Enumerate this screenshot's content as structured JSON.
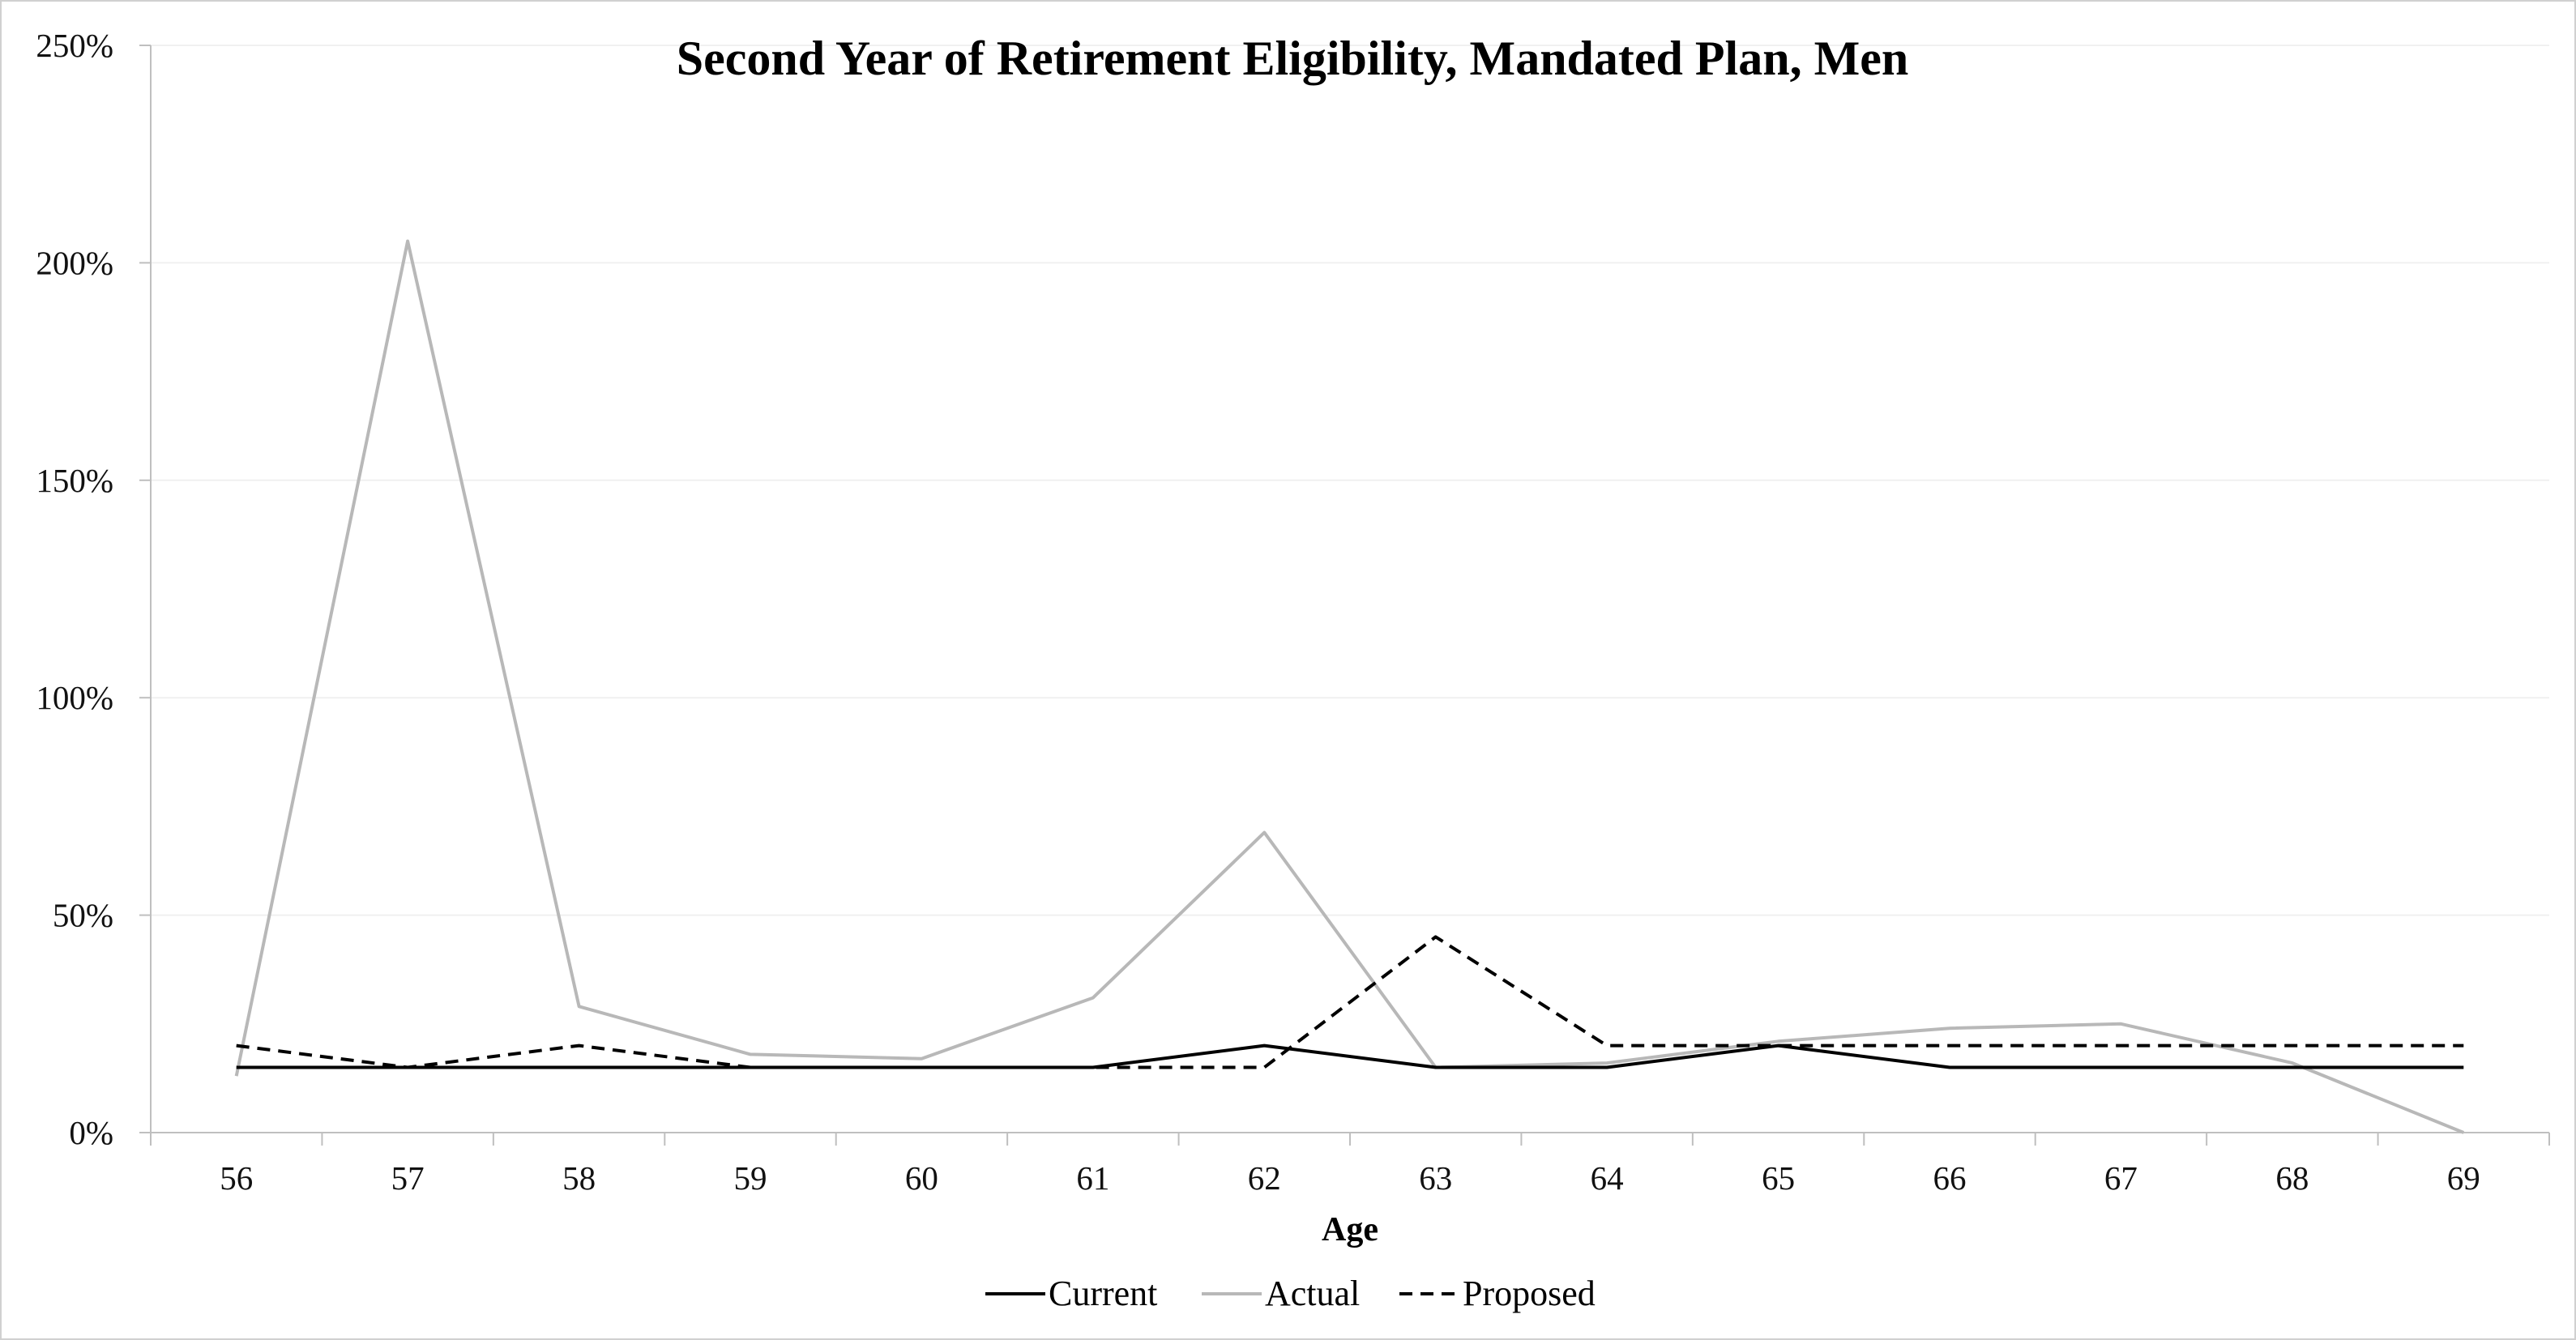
{
  "chart_data": {
    "type": "line",
    "title": "Second Year of Retirement Eligibility, Mandated Plan, Men",
    "xlabel": "Age",
    "ylabel": "",
    "categories": [
      "56",
      "57",
      "58",
      "59",
      "60",
      "61",
      "62",
      "63",
      "64",
      "65",
      "66",
      "67",
      "68",
      "69"
    ],
    "y_tick_labels": [
      "0%",
      "50%",
      "100%",
      "150%",
      "200%",
      "250%"
    ],
    "y_ticks": [
      0,
      50,
      100,
      150,
      200,
      250
    ],
    "ylim": [
      0,
      250
    ],
    "y_unit": "percent",
    "grid": true,
    "legend_position": "bottom",
    "series": [
      {
        "name": "Current",
        "color": "#000000",
        "dash": "solid",
        "values": [
          15,
          15,
          15,
          15,
          15,
          15,
          20,
          15,
          15,
          20,
          15,
          15,
          15,
          15
        ]
      },
      {
        "name": "Actual",
        "color": "#b8b8b8",
        "dash": "solid",
        "values": [
          13,
          205,
          29,
          18,
          17,
          31,
          69,
          15,
          16,
          21,
          24,
          25,
          16,
          0
        ]
      },
      {
        "name": "Proposed",
        "color": "#000000",
        "dash": "dashed",
        "values": [
          20,
          15,
          20,
          15,
          15,
          15,
          15,
          45,
          20,
          20,
          20,
          20,
          20,
          20
        ]
      }
    ]
  }
}
